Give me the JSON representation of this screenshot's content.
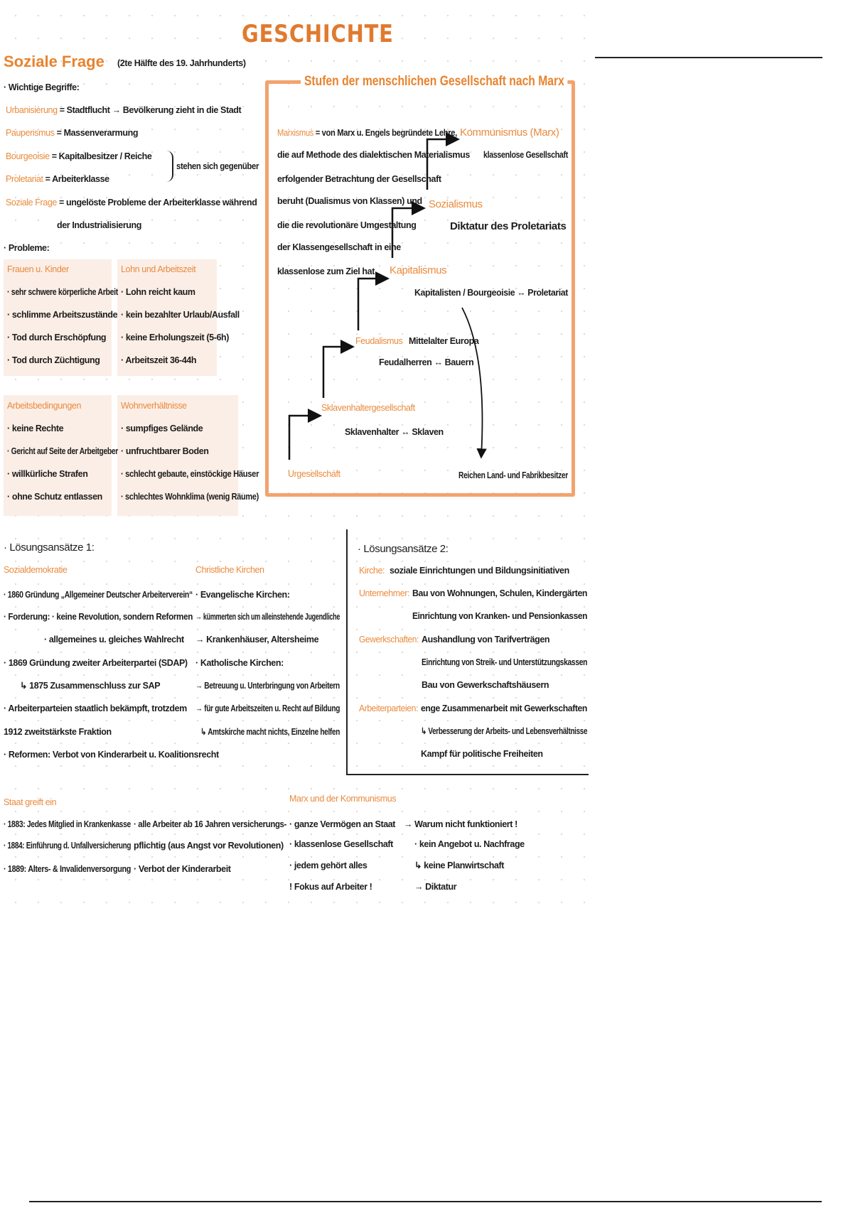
{
  "title": "GESCHICHTE",
  "soziale_frage": {
    "heading": "Soziale Frage",
    "subtitle": "(2te Hälfte des 19. Jahrhunderts)",
    "begriffe_label": "· Wichtige Begriffe:",
    "terms": [
      {
        "term": "Urbanisierung",
        "def": "= Stadtflucht → Bevölkerung zieht in die Stadt"
      },
      {
        "term": "Pauperismus",
        "def": "= Massenverarmung"
      },
      {
        "term": "Bourgeoisie",
        "def": "= Kapitalbesitzer / Reiche"
      },
      {
        "term": "Proletariat",
        "def": "= Arbeiterklasse"
      },
      {
        "term": "Soziale Frage",
        "def": "= ungelöste Probleme der Arbeiterklasse während"
      }
    ],
    "brace_text": "stehen sich gegenüber",
    "def_cont": "der Industrialisierung",
    "probleme_label": "· Probleme:",
    "boxes": [
      {
        "title": "Frauen u. Kinder",
        "items": [
          "· sehr schwere körperliche Arbeit",
          "· schlimme Arbeitszustände",
          "· Tod durch Erschöpfung",
          "· Tod durch Züchtigung"
        ]
      },
      {
        "title": "Lohn und Arbeitszeit",
        "items": [
          "· Lohn reicht kaum",
          "· kein bezahlter Urlaub/Ausfall",
          "· keine Erholungszeit (5-6h)",
          "· Arbeitszeit 36-44h"
        ]
      },
      {
        "title": "Arbeitsbedingungen",
        "items": [
          "· keine Rechte",
          "· Gericht auf Seite der Arbeitgeber",
          "· willkürliche Strafen",
          "· ohne Schutz entlassen"
        ]
      },
      {
        "title": "Wohnverhältnisse",
        "items": [
          "· sumpfiges Gelände",
          "· unfruchtbarer Boden",
          "· schlecht gebaute, einstöckige Häuser",
          "· schlechtes Wohnklima (wenig Räume)"
        ]
      }
    ]
  },
  "marx": {
    "title": "Stufen der menschlichen Gesellschaft nach Marx",
    "marxismus_term": "Marxismus",
    "marxismus_lines": [
      "= von Marx u. Engels begründete Lehre,",
      "die auf Methode des dialektischen Materialismus",
      "erfolgender Betrachtung der Gesellschaft",
      "beruht (Dualismus von Klassen) und",
      "die die revolutionäre Umgestaltung",
      "der Klassengesellschaft in eine",
      "klassenlose zum Ziel hat"
    ],
    "stages": [
      {
        "name": "Kommunismus (Marx)",
        "desc": "klassenlose Gesellschaft"
      },
      {
        "name": "Sozialismus",
        "desc": "Diktatur des Proletariats"
      },
      {
        "name": "Kapitalismus",
        "desc": "Kapitalisten / Bourgeoisie ↔ Proletariat"
      },
      {
        "name": "Feudalismus",
        "extra": "Mittelalter Europa",
        "desc": "Feudalherren ↔ Bauern"
      },
      {
        "name": "Sklavenhaltergesellschaft",
        "desc": "Sklavenhalter ↔ Sklaven"
      },
      {
        "name": "Urgesellschaft"
      }
    ],
    "reichen": "Reichen Land- und Fabrikbesitzer"
  },
  "loesung1": {
    "heading": "· Lösungsansätze 1:",
    "sozialdemokratie": {
      "title": "Sozialdemokratie",
      "items": [
        "· 1860 Gründung „Allgemeiner Deutscher Arbeiterverein“",
        "· Forderung: · keine Revolution, sondern Reformen",
        "· allgemeines u. gleiches Wahlrecht",
        "· 1869 Gründung zweiter Arbeiterpartei (SDAP)",
        "↳ 1875 Zusammenschluss zur SAP",
        "· Arbeiterparteien staatlich bekämpft, trotzdem",
        "1912 zweitstärkste Fraktion",
        "· Reformen: Verbot von Kinderarbeit u. Koalitionsrecht"
      ]
    },
    "kirchen": {
      "title": "Christliche Kirchen",
      "items": [
        "· Evangelische Kirchen:",
        "→ kümmerten sich um alleinstehende Jugendliche",
        "→ Krankenhäuser, Altersheime",
        "· Katholische Kirchen:",
        "→ Betreuung u. Unterbringung von Arbeitern",
        "→ für gute Arbeitszeiten u. Recht auf Bildung",
        "↳ Amtskirche macht nichts, Einzelne helfen"
      ]
    }
  },
  "loesung2": {
    "heading": "· Lösungsansätze 2:",
    "rows": [
      {
        "label": "Kirche:",
        "lines": [
          "soziale Einrichtungen und Bildungsinitiativen"
        ]
      },
      {
        "label": "Unternehmer:",
        "lines": [
          "Bau von Wohnungen, Schulen, Kindergärten",
          "Einrichtung von Kranken- und Pensionkassen"
        ]
      },
      {
        "label": "Gewerkschaften:",
        "lines": [
          "Aushandlung von Tarifverträgen",
          "Einrichtung von Streik- und Unterstützungskassen",
          "Bau von Gewerkschaftshäusern"
        ]
      },
      {
        "label": "Arbeiterparteien:",
        "lines": [
          "enge Zusammenarbeit mit Gewerkschaften",
          "↳ Verbesserung der Arbeits- und Lebensverhältnisse",
          "Kampf für politische Freiheiten"
        ]
      }
    ]
  },
  "staat": {
    "heading": "Staat greift ein",
    "left": [
      "· 1883: Jedes Mitglied in Krankenkasse",
      "· 1884: Einführung d. Unfallversicherung",
      "· 1889: Alters- & Invalidenversorgung"
    ],
    "right": [
      "· alle Arbeiter ab 16 Jahren versicherungs-",
      "pflichtig (aus Angst vor Revolutionen)",
      "· Verbot der Kinderarbeit"
    ]
  },
  "kommunismus": {
    "heading": "Marx und der Kommunismus",
    "left": [
      "· ganze Vermögen an Staat",
      "· klassenlose Gesellschaft",
      "· jedem gehört alles",
      "! Fokus auf Arbeiter !"
    ],
    "right": [
      "→ Warum nicht funktioniert !",
      "· kein Angebot u. Nachfrage",
      "↳ keine Planwirtschaft",
      "→ Diktatur"
    ]
  },
  "colors": {
    "accent": "#e8832e",
    "box_bg": "#fbeee6",
    "frame": "#f2a36e"
  }
}
